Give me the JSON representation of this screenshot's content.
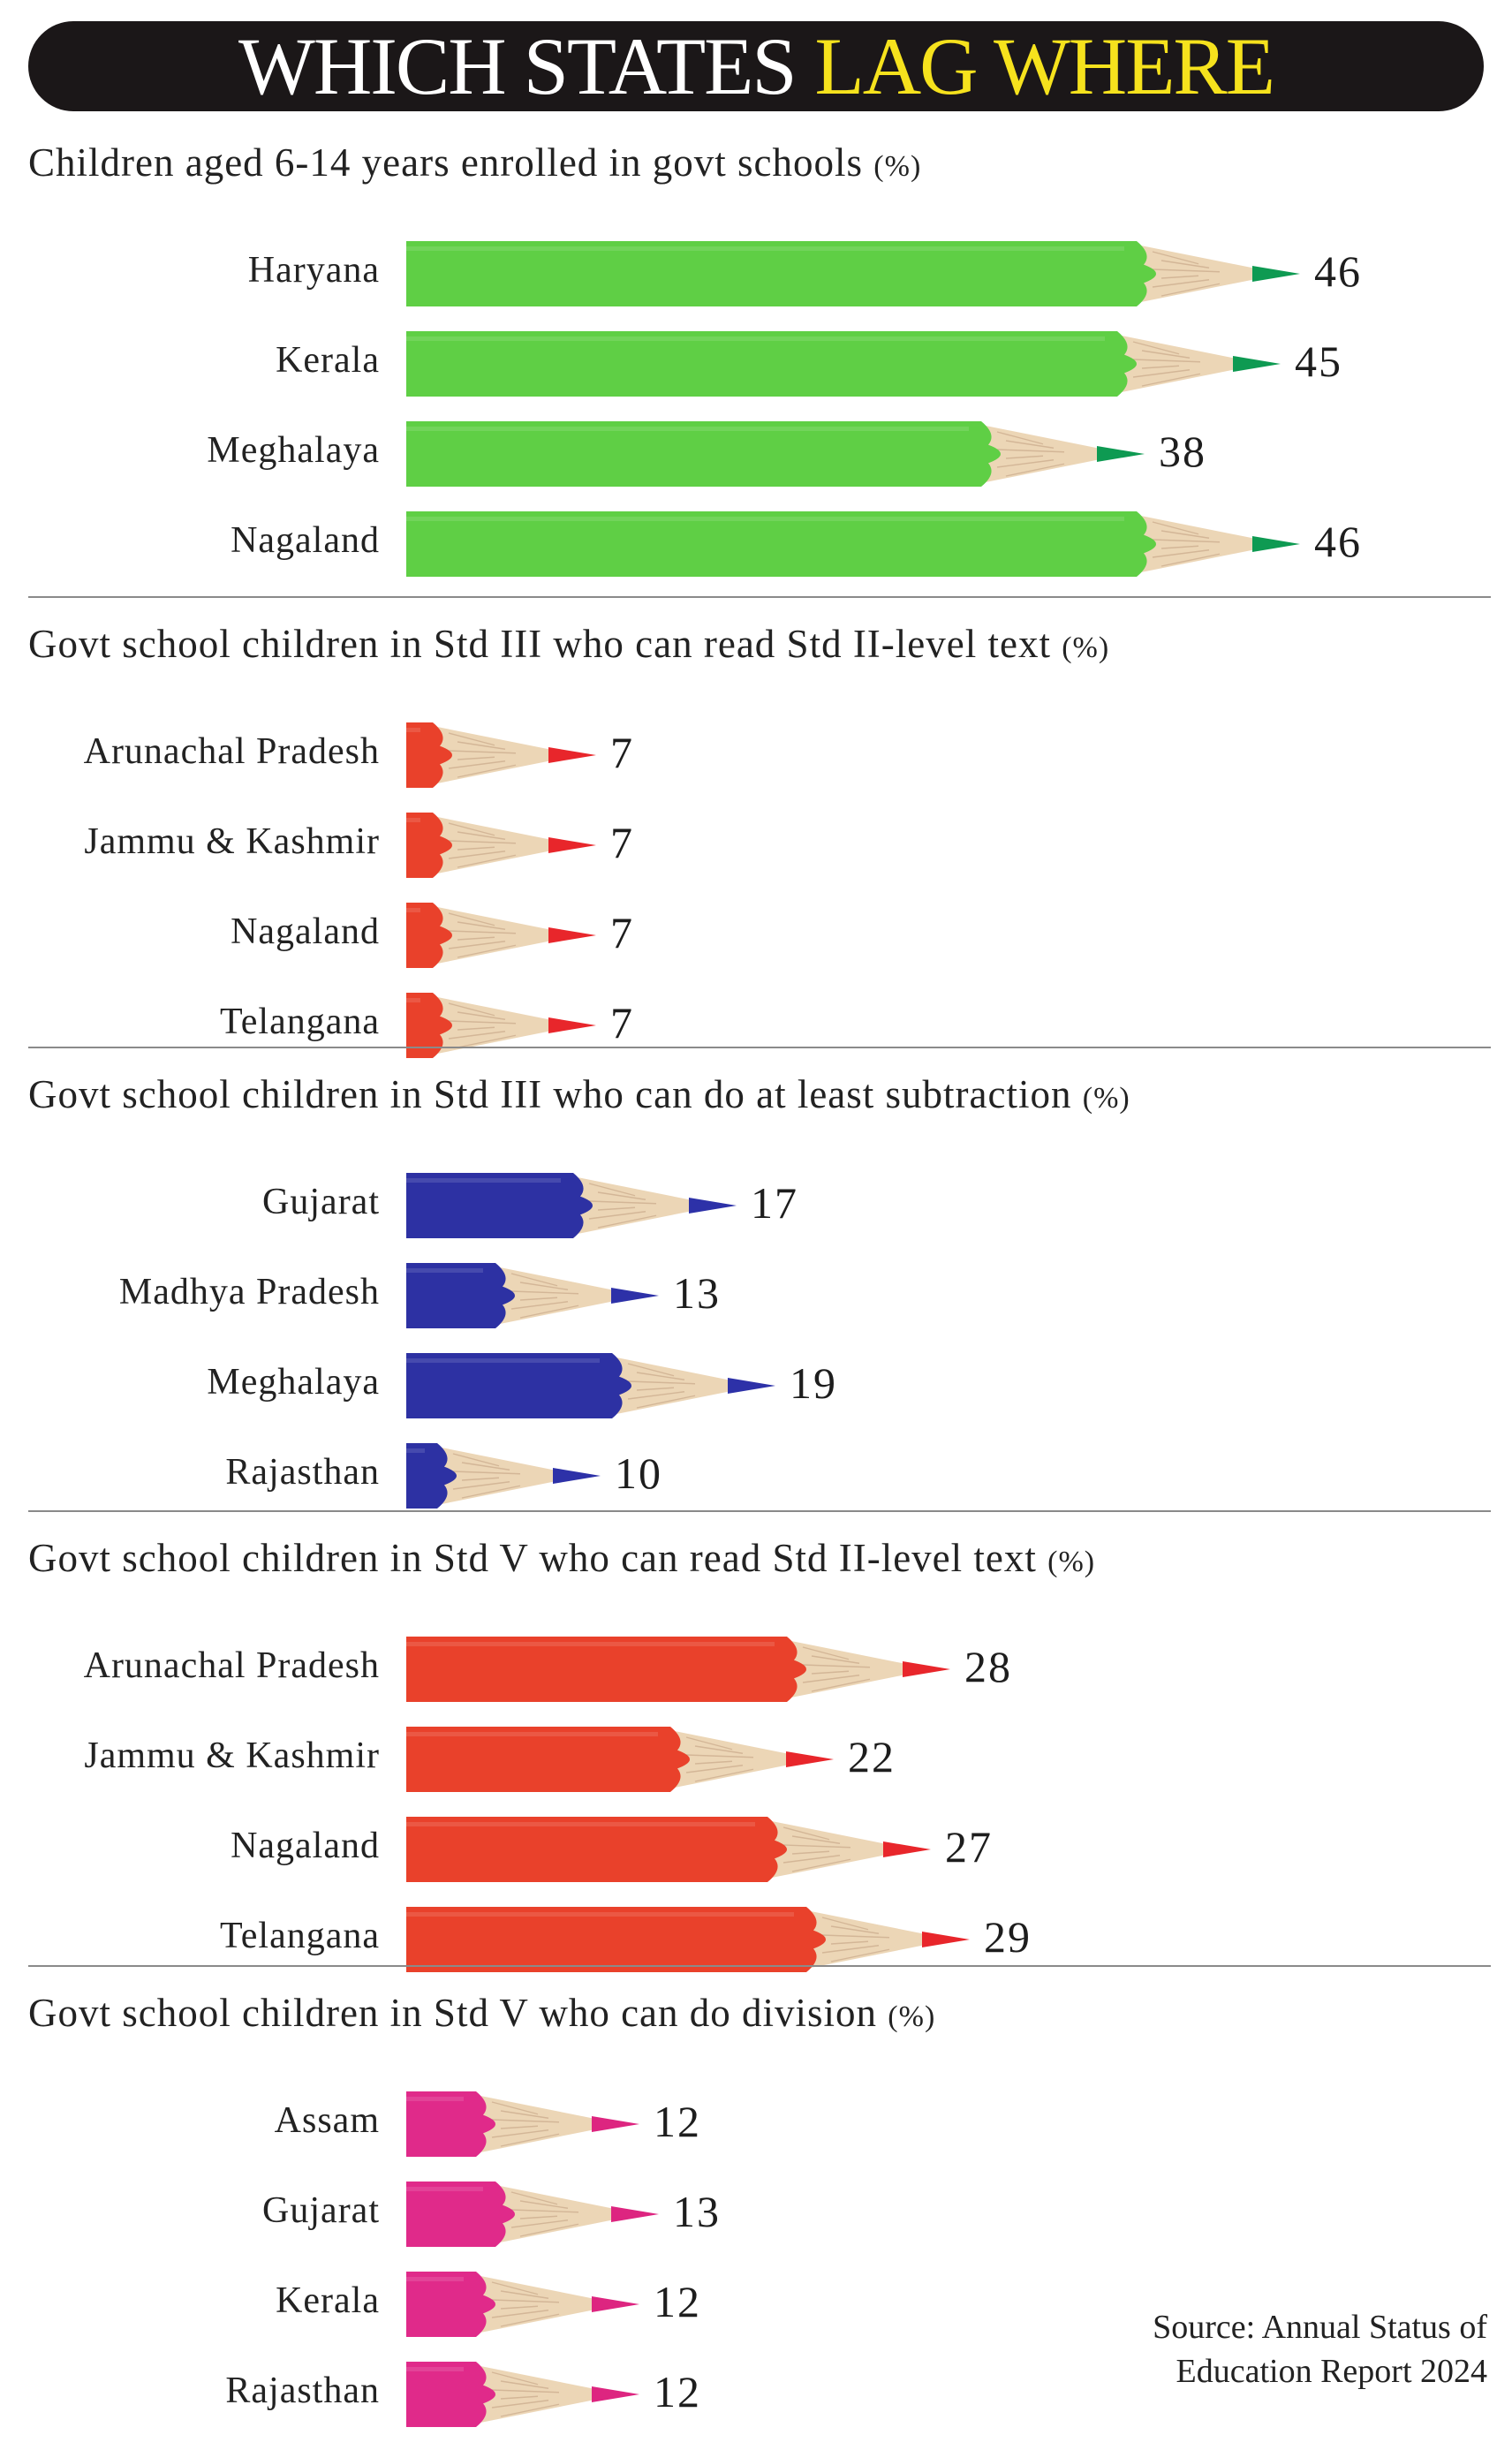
{
  "header": {
    "title_part1": "WHICH STATES",
    "title_part2": "LAG WHERE",
    "title_part1_color": "#ffffff",
    "title_part2_color": "#f6e21d"
  },
  "colors": {
    "green_body": "#5fcf45",
    "green_tip": "#0e9a52",
    "red_body": "#e9412b",
    "red_tip": "#e8262b",
    "blue_body": "#2d31a3",
    "blue_tip": "#2d31a8",
    "pink_body": "#e02a8a",
    "pink_tip": "#dd2580",
    "wood": "#ecd6b6"
  },
  "chart_data": [
    {
      "type": "bar",
      "title": "Children aged 6-14 years enrolled in govt schools",
      "unit": "(%)",
      "color": "green",
      "categories": [
        "Haryana",
        "Kerala",
        "Meghalaya",
        "Nagaland"
      ],
      "values": [
        46,
        45,
        38,
        46
      ]
    },
    {
      "type": "bar",
      "title": "Govt school children in Std III who can read Std II-level text",
      "unit": "(%)",
      "color": "red",
      "categories": [
        "Arunachal Pradesh",
        "Jammu & Kashmir",
        "Nagaland",
        "Telangana"
      ],
      "values": [
        7,
        7,
        7,
        7
      ]
    },
    {
      "type": "bar",
      "title": "Govt school children in Std III who can do at least subtraction",
      "unit": "(%)",
      "color": "blue",
      "categories": [
        "Gujarat",
        "Madhya Pradesh",
        "Meghalaya",
        "Rajasthan"
      ],
      "values": [
        17,
        13,
        19,
        10
      ]
    },
    {
      "type": "bar",
      "title": "Govt school children in Std V who can read Std II-level text",
      "unit": "(%)",
      "color": "red",
      "categories": [
        "Arunachal Pradesh",
        "Jammu & Kashmir",
        "Nagaland",
        "Telangana"
      ],
      "values": [
        28,
        22,
        27,
        29
      ]
    },
    {
      "type": "bar",
      "title": "Govt school children in Std V who can do division",
      "unit": "(%)",
      "color": "pink",
      "categories": [
        "Assam",
        "Gujarat",
        "Kerala",
        "Rajasthan"
      ],
      "values": [
        12,
        13,
        12,
        12
      ]
    }
  ],
  "source": {
    "line1": "Source: Annual Status of",
    "line2": "Education Report 2024"
  }
}
